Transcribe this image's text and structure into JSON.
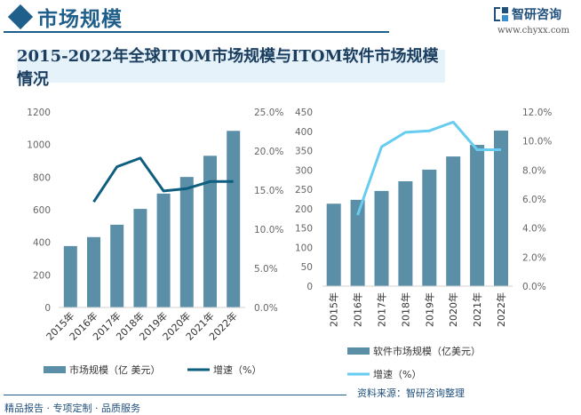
{
  "header": {
    "title": "市场规模",
    "logo_text": "智研咨询",
    "site": "www.chyxx.com"
  },
  "chart_title": "2015-2022年全球ITOM市场规模与ITOM软件市场规模情况",
  "colors": {
    "bar": "#5b8fa8",
    "line_left": "#0e5e80",
    "line_right": "#66ccf0",
    "header": "#1f5f8b"
  },
  "footer": {
    "left": "精品报告 · 专项定制 · 品质服务",
    "right": "资料来源：智研咨询整理"
  },
  "chart_data": [
    {
      "type": "bar+line",
      "categories": [
        "2015年",
        "2016年",
        "2017年",
        "2018年",
        "2019年",
        "2020年",
        "2021年",
        "2022年"
      ],
      "series": [
        {
          "name": "市场规模（亿 美元）",
          "type": "bar",
          "axis": "left",
          "values": [
            377,
            432,
            508,
            605,
            699,
            801,
            931,
            1084
          ]
        },
        {
          "name": "增速（%）",
          "type": "line",
          "axis": "right",
          "values": [
            null,
            13.5,
            18.0,
            19.1,
            14.9,
            15.2,
            16.1,
            16.1
          ]
        }
      ],
      "y_left": {
        "range": [
          0,
          1200
        ],
        "ticks": [
          "0",
          "200",
          "400",
          "600",
          "800",
          "1000",
          "1200"
        ]
      },
      "y_right": {
        "range": [
          0,
          25
        ],
        "ticks": [
          "0.0%",
          "5.0%",
          "10.0%",
          "15.0%",
          "20.0%",
          "25.0%"
        ]
      },
      "grid": false,
      "legend": "bottom"
    },
    {
      "type": "bar+line",
      "categories": [
        "2015年",
        "2016年",
        "2017年",
        "2018年",
        "2019年",
        "2020年",
        "2021年",
        "2022年"
      ],
      "series": [
        {
          "name": "软件市场规模（亿美元）",
          "type": "bar",
          "axis": "left",
          "values": [
            213,
            223,
            246,
            271,
            301,
            335,
            365,
            402
          ]
        },
        {
          "name": "增速（%）",
          "type": "line",
          "axis": "right",
          "values": [
            null,
            4.9,
            9.6,
            10.6,
            10.7,
            11.3,
            9.4,
            9.4
          ]
        }
      ],
      "y_left": {
        "range": [
          0,
          450
        ],
        "ticks": [
          "0",
          "50",
          "100",
          "150",
          "200",
          "250",
          "300",
          "350",
          "400",
          "450"
        ]
      },
      "y_right": {
        "range": [
          0,
          12
        ],
        "ticks": [
          "0.0%",
          "2.0%",
          "4.0%",
          "6.0%",
          "8.0%",
          "10.0%",
          "12.0%"
        ]
      },
      "grid": false,
      "legend": "bottom"
    }
  ]
}
